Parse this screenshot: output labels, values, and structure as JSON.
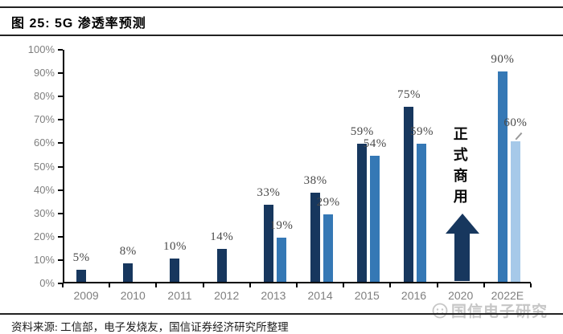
{
  "header": {
    "title": "图 25: 5G 渗透率预测"
  },
  "footer": {
    "source_note": "资料来源: 工信部，电子发烧友，国信证券经济研究所整理",
    "watermark_text": "国信电子研究",
    "watermark_icon": "smiley-face-icon"
  },
  "colors": {
    "bar_navy": "#17375E",
    "bar_medium": "#3578B5",
    "bar_pale": "#A6C9E9",
    "axis": "#000000",
    "axis_label_gray": "#7F7F7F",
    "data_label_gray": "#4A4A4A",
    "annotation_navy": "#17375E",
    "watermark_gray": "#C6C6C6"
  },
  "chart_data": {
    "type": "bar",
    "title": "5G 渗透率预测",
    "xlabel": "",
    "ylabel": "",
    "unit": "%",
    "ylim": [
      0,
      100
    ],
    "grid": false,
    "legend": "none",
    "y_tick_labels": [
      "0%",
      "10%",
      "20%",
      "30%",
      "40%",
      "50%",
      "60%",
      "70%",
      "80%",
      "90%",
      "100%"
    ],
    "categories": [
      "2009",
      "2010",
      "2011",
      "2012",
      "2013",
      "2014",
      "2015",
      "2016",
      "2020",
      "2022E"
    ],
    "series": [
      {
        "name": "dark-navy-series",
        "color_key": "bar_navy",
        "values": [
          5,
          8,
          10,
          14,
          33,
          38,
          59,
          75,
          null,
          null
        ]
      },
      {
        "name": "medium-blue-series",
        "color_key": "bar_medium",
        "values": [
          null,
          null,
          null,
          null,
          19,
          29,
          54,
          59,
          null,
          90
        ]
      },
      {
        "name": "pale-blue-series",
        "color_key": "bar_pale",
        "values": [
          null,
          null,
          null,
          null,
          null,
          null,
          null,
          null,
          null,
          60
        ]
      }
    ],
    "bars_by_category": [
      {
        "category": "2009",
        "bars": [
          {
            "value": 5,
            "label": "5%",
            "color_key": "bar_navy"
          }
        ]
      },
      {
        "category": "2010",
        "bars": [
          {
            "value": 8,
            "label": "8%",
            "color_key": "bar_navy"
          }
        ]
      },
      {
        "category": "2011",
        "bars": [
          {
            "value": 10,
            "label": "10%",
            "color_key": "bar_navy"
          }
        ]
      },
      {
        "category": "2012",
        "bars": [
          {
            "value": 14,
            "label": "14%",
            "color_key": "bar_navy"
          }
        ]
      },
      {
        "category": "2013",
        "bars": [
          {
            "value": 33,
            "label": "33%",
            "color_key": "bar_navy"
          },
          {
            "value": 19,
            "label": "19%",
            "color_key": "bar_medium"
          }
        ]
      },
      {
        "category": "2014",
        "bars": [
          {
            "value": 38,
            "label": "38%",
            "color_key": "bar_navy"
          },
          {
            "value": 29,
            "label": "29%",
            "color_key": "bar_medium"
          }
        ]
      },
      {
        "category": "2015",
        "bars": [
          {
            "value": 59,
            "label": "59%",
            "color_key": "bar_navy"
          },
          {
            "value": 54,
            "label": "54%",
            "color_key": "bar_medium"
          }
        ]
      },
      {
        "category": "2016",
        "bars": [
          {
            "value": 75,
            "label": "75%",
            "color_key": "bar_navy"
          },
          {
            "value": 59,
            "label": "59%",
            "color_key": "bar_medium"
          }
        ]
      },
      {
        "category": "2020",
        "bars": [],
        "annotation": {
          "lines": [
            "正式",
            "商用"
          ],
          "shape": "up-arrow",
          "color_key": "annotation_navy"
        }
      },
      {
        "category": "2022E",
        "bars": [
          {
            "value": 90,
            "label": "90%",
            "color_key": "bar_medium"
          },
          {
            "value": 60,
            "label": "60%",
            "color_key": "bar_pale",
            "leader_line": true
          }
        ]
      }
    ]
  }
}
